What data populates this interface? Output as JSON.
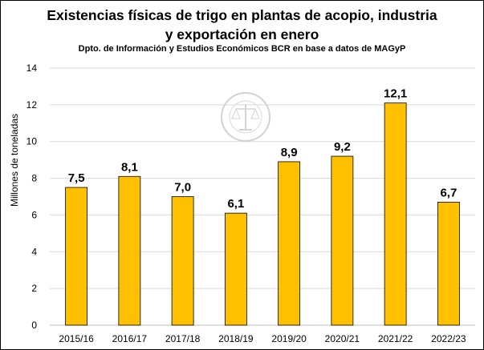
{
  "chart_data": {
    "type": "bar",
    "title_line1": "Existencias físicas de trigo en plantas de acopio, industria",
    "title_line2": "y exportación en enero",
    "subtitle": "Dpto. de Información y Estudios Económicos BCR en base a datos de MAGyP",
    "ylabel": "Millones de toneladas",
    "xlabel": "",
    "categories": [
      "2015/16",
      "2016/17",
      "2017/18",
      "2018/19",
      "2019/20",
      "2020/21",
      "2021/22",
      "2022/23"
    ],
    "values": [
      7.5,
      8.1,
      7.0,
      6.1,
      8.9,
      9.2,
      12.1,
      6.7
    ],
    "data_labels": [
      "7,5",
      "8,1",
      "7,0",
      "6,1",
      "8,9",
      "9,2",
      "12,1",
      "6,7"
    ],
    "yticks": [
      "0",
      "2",
      "4",
      "6",
      "8",
      "10",
      "12",
      "14"
    ],
    "ylim": [
      0,
      14
    ],
    "grid": true,
    "legend": false,
    "bar_color": "#FFC000",
    "bar_edge_color": "#000000",
    "grid_color": "#D9D9D9",
    "watermark": "BOLSA DE COMERCIO DE ROSARIO"
  }
}
